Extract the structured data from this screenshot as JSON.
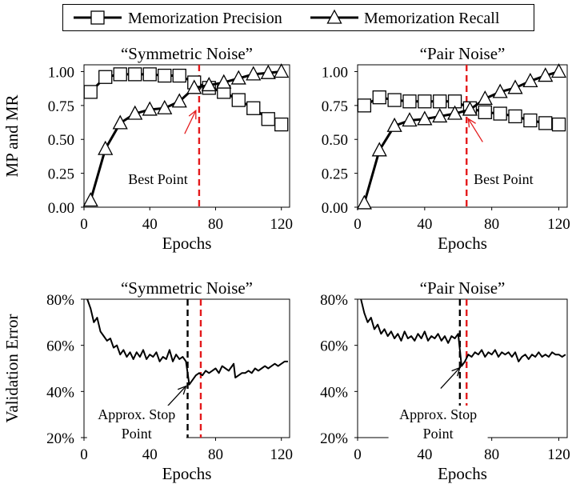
{
  "legend": {
    "items": [
      {
        "name": "Memorization Precision",
        "marker": "square"
      },
      {
        "name": "Memorization Recall",
        "marker": "triangle"
      }
    ]
  },
  "colors": {
    "line": "#000000",
    "threshold": "#e41a1c",
    "stop": "#000000"
  },
  "chart_data": [
    {
      "type": "line",
      "title": "“Symmetric Noise”",
      "xlabel": "Epochs",
      "ylabel": "MP and MR",
      "xlim": [
        0,
        125
      ],
      "ylim": [
        0,
        1.05
      ],
      "xticks": [
        "0",
        "40",
        "80",
        "120"
      ],
      "yticks": [
        "0.00",
        "0.25",
        "0.50",
        "0.75",
        "1.00"
      ],
      "x": [
        4,
        13,
        22,
        31,
        40,
        49,
        58,
        67,
        76,
        85,
        94,
        103,
        112,
        120
      ],
      "series": [
        {
          "name": "Memorization Precision",
          "marker": "square",
          "values": [
            0.85,
            0.96,
            0.98,
            0.98,
            0.98,
            0.97,
            0.97,
            0.92,
            0.88,
            0.85,
            0.79,
            0.73,
            0.65,
            0.61
          ]
        },
        {
          "name": "Memorization Recall",
          "marker": "triangle",
          "values": [
            0.05,
            0.43,
            0.62,
            0.69,
            0.72,
            0.73,
            0.78,
            0.88,
            0.9,
            0.92,
            0.95,
            0.98,
            0.99,
            1.0
          ]
        }
      ],
      "vline": {
        "x": 70,
        "color": "threshold"
      },
      "annotation": {
        "text": "Best Point",
        "point": [
          68,
          0.73
        ],
        "label_at": [
          45,
          0.17
        ],
        "color": "threshold"
      }
    },
    {
      "type": "line",
      "title": "“Pair Noise”",
      "xlabel": "Epochs",
      "ylabel": "",
      "xlim": [
        0,
        125
      ],
      "ylim": [
        0,
        1.05
      ],
      "xticks": [
        "0",
        "40",
        "80",
        "120"
      ],
      "yticks": [
        "0.00",
        "0.25",
        "0.50",
        "0.75",
        "1.00"
      ],
      "x": [
        4,
        13,
        22,
        31,
        40,
        49,
        58,
        67,
        76,
        85,
        94,
        103,
        112,
        120
      ],
      "series": [
        {
          "name": "Memorization Precision",
          "marker": "square",
          "values": [
            0.75,
            0.81,
            0.79,
            0.78,
            0.78,
            0.78,
            0.78,
            0.73,
            0.7,
            0.69,
            0.67,
            0.64,
            0.62,
            0.61
          ]
        },
        {
          "name": "Memorization Recall",
          "marker": "triangle",
          "values": [
            0.03,
            0.42,
            0.6,
            0.64,
            0.65,
            0.67,
            0.69,
            0.72,
            0.8,
            0.85,
            0.88,
            0.93,
            0.97,
            1.0
          ]
        }
      ],
      "vline": {
        "x": 65,
        "color": "threshold"
      },
      "annotation": {
        "text": "Best Point",
        "point": [
          66,
          0.67
        ],
        "label_at": [
          87,
          0.17
        ],
        "color": "threshold"
      }
    },
    {
      "type": "line",
      "title": "“Symmetric Noise”",
      "xlabel": "Epochs",
      "ylabel": "Validation Error",
      "xlim": [
        0,
        125
      ],
      "ylim": [
        20,
        80
      ],
      "xticks": [
        "0",
        "40",
        "80",
        "120"
      ],
      "yticks": [
        "20%",
        "40%",
        "60%",
        "80%"
      ],
      "series": [
        {
          "name": "",
          "x": [
            2,
            4,
            6,
            8,
            10,
            12,
            14,
            16,
            18,
            20,
            22,
            24,
            26,
            28,
            30,
            32,
            34,
            36,
            38,
            40,
            42,
            44,
            46,
            48,
            50,
            52,
            54,
            56,
            58,
            60,
            62,
            64,
            66,
            68,
            70,
            72,
            74,
            76,
            78,
            80,
            82,
            84,
            86,
            88,
            90,
            91,
            92,
            94,
            96,
            98,
            100,
            102,
            104,
            106,
            108,
            110,
            112,
            114,
            116,
            118,
            120,
            122,
            124
          ],
          "values": [
            80,
            76,
            70,
            72,
            66,
            64,
            62,
            63,
            59,
            60,
            56,
            58,
            55,
            57,
            54,
            57,
            55,
            58,
            54,
            56,
            55,
            57,
            53,
            55,
            54,
            58,
            53,
            56,
            54,
            55,
            53,
            43,
            45,
            47,
            48,
            47,
            49,
            48,
            49,
            50,
            48,
            51,
            50,
            49,
            51,
            52,
            46,
            47,
            48,
            48,
            49,
            48,
            50,
            49,
            50,
            51,
            50,
            51,
            52,
            51,
            52,
            53,
            53
          ]
        }
      ],
      "vlines": [
        {
          "x": 63,
          "color": "stop"
        },
        {
          "x": 71,
          "color": "threshold"
        }
      ],
      "annotation": {
        "text": "Approx. Stop Point",
        "point": [
          62,
          43
        ],
        "label_at": [
          32,
          28
        ],
        "color": "stop"
      }
    },
    {
      "type": "line",
      "title": "“Pair Noise”",
      "xlabel": "Epochs",
      "ylabel": "",
      "xlim": [
        0,
        125
      ],
      "ylim": [
        20,
        80
      ],
      "xticks": [
        "0",
        "40",
        "80",
        "120"
      ],
      "yticks": [
        "20%",
        "40%",
        "60%",
        "80%"
      ],
      "series": [
        {
          "name": "",
          "x": [
            2,
            4,
            6,
            8,
            10,
            12,
            14,
            16,
            18,
            20,
            22,
            24,
            26,
            28,
            30,
            32,
            34,
            36,
            38,
            40,
            42,
            44,
            46,
            48,
            50,
            52,
            54,
            56,
            58,
            60,
            62,
            64,
            66,
            68,
            70,
            72,
            74,
            76,
            78,
            80,
            82,
            84,
            86,
            88,
            90,
            92,
            94,
            96,
            98,
            100,
            102,
            104,
            106,
            108,
            110,
            112,
            114,
            116,
            118,
            120,
            122,
            124
          ],
          "values": [
            80,
            74,
            70,
            72,
            67,
            69,
            65,
            67,
            64,
            66,
            63,
            65,
            62,
            66,
            63,
            64,
            62,
            65,
            63,
            66,
            62,
            64,
            63,
            65,
            62,
            64,
            61,
            64,
            63,
            65,
            51,
            53,
            56,
            55,
            57,
            56,
            58,
            55,
            57,
            56,
            58,
            55,
            57,
            56,
            57,
            55,
            57,
            53,
            55,
            56,
            54,
            56,
            55,
            57,
            55,
            56,
            55,
            57,
            56,
            56,
            55,
            56
          ]
        }
      ],
      "vlines": [
        {
          "x": 61,
          "color": "stop"
        },
        {
          "x": 65,
          "color": "threshold"
        }
      ],
      "annotation": {
        "text": "Approx. Stop Point",
        "point": [
          61,
          51
        ],
        "label_at": [
          48,
          28
        ],
        "color": "stop"
      }
    }
  ]
}
